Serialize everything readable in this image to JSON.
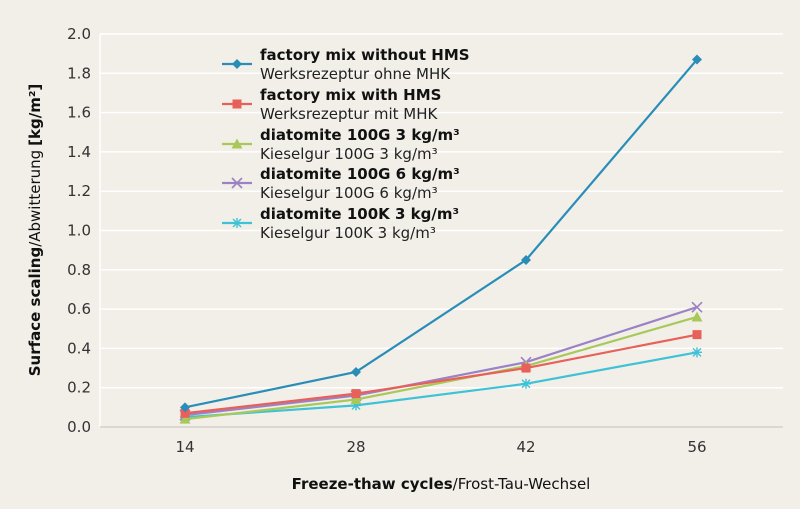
{
  "chart_data": {
    "type": "line",
    "x": [
      14,
      28,
      42,
      56
    ],
    "xlabel_bold": "Freeze-thaw cycles",
    "xlabel_rest": "/Frost-Tau-Wechsel",
    "ylabel_bold": "Surface scaling",
    "ylabel_rest": "/Abwitterung",
    "ylabel_unit": "[kg/m²]",
    "ylim": [
      0,
      2.0
    ],
    "yticks": [
      "0.0",
      "0.2",
      "0.4",
      "0.6",
      "0.8",
      "1.0",
      "1.2",
      "1.4",
      "1.6",
      "1.8",
      "2.0"
    ],
    "ytick_values": [
      0,
      0.2,
      0.4,
      0.6,
      0.8,
      1.0,
      1.2,
      1.4,
      1.6,
      1.8,
      2.0
    ],
    "xticks": [
      "14",
      "28",
      "42",
      "56"
    ],
    "grid": "horizontal",
    "legend_position": "top-left",
    "series": [
      {
        "name": "factory mix without HMS",
        "name2": "Werksrezeptur ohne MHK",
        "color": "#2a8db8",
        "marker": "diamond",
        "values": [
          0.1,
          0.28,
          0.85,
          1.87
        ]
      },
      {
        "name": "factory mix with HMS",
        "name2": "Werksrezeptur mit MHK",
        "color": "#e8605a",
        "marker": "square",
        "values": [
          0.07,
          0.17,
          0.3,
          0.47
        ]
      },
      {
        "name": "diatomite 100G 3 kg/m³",
        "name2": "Kieselgur 100G 3 kg/m³",
        "color": "#a9c85a",
        "marker": "triangle",
        "values": [
          0.04,
          0.14,
          0.31,
          0.56
        ]
      },
      {
        "name": "diatomite 100G 6 kg/m³",
        "name2": "Kieselgur 100G 6 kg/m³",
        "color": "#9b82c4",
        "marker": "x",
        "values": [
          0.06,
          0.16,
          0.33,
          0.61
        ]
      },
      {
        "name": "diatomite 100K 3 kg/m³",
        "name2": "Kieselgur 100K 3 kg/m³",
        "color": "#3ec2d6",
        "marker": "star",
        "values": [
          0.05,
          0.11,
          0.22,
          0.38
        ]
      }
    ]
  }
}
